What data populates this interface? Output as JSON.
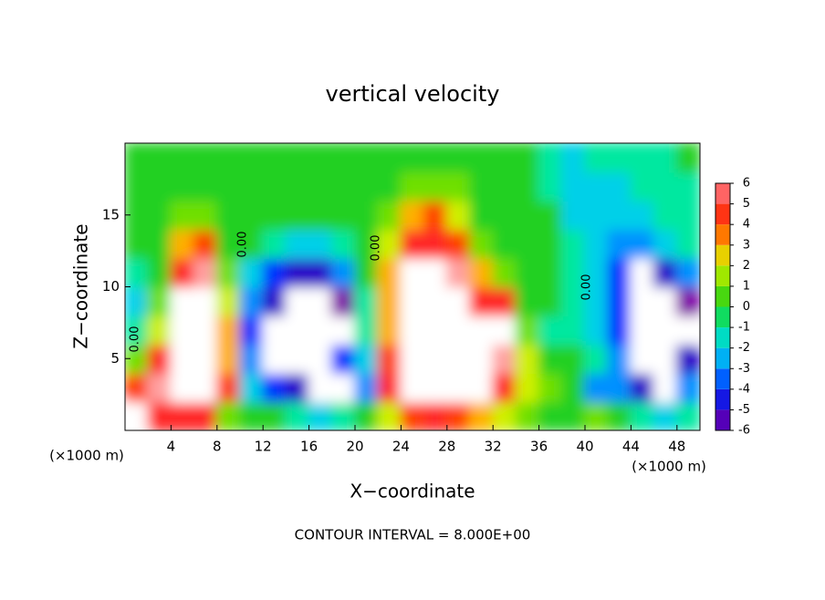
{
  "chart_data": {
    "type": "contourf",
    "title": "vertical velocity",
    "x_label": "X−coordinate",
    "y_label": "Z−coordinate",
    "x_unit_left": "(×1000 m)",
    "x_unit_right": "(×1000 m)",
    "footer": "CONTOUR INTERVAL = 8.000E+00",
    "contour_labels": [
      "0.00",
      "0.00",
      "0.00",
      "0.00"
    ],
    "xlim": [
      0,
      50
    ],
    "ylim": [
      0,
      20
    ],
    "xticks": [
      4,
      8,
      12,
      16,
      20,
      24,
      28,
      32,
      36,
      40,
      44,
      48
    ],
    "yticks": [
      5,
      10,
      15
    ],
    "x": [
      1,
      3,
      5,
      7,
      9,
      11,
      13,
      15,
      17,
      19,
      21,
      23,
      25,
      27,
      29,
      31,
      33,
      35,
      37,
      39,
      41,
      43,
      45,
      47,
      49
    ],
    "y": [
      1,
      3,
      5,
      7,
      9,
      11,
      13,
      15,
      17,
      19
    ],
    "values": [
      [
        8,
        5,
        5,
        5,
        1,
        0,
        0,
        -1,
        -2,
        -1,
        0,
        2,
        4,
        5,
        4,
        3,
        2,
        1,
        0,
        0,
        1,
        0,
        -1,
        -2,
        -1
      ],
      [
        4,
        6,
        8,
        8,
        4,
        -2,
        -4,
        -5,
        -8,
        -8,
        -3,
        5,
        8,
        8,
        8,
        8,
        5,
        2,
        1,
        0,
        -3,
        -3,
        -5,
        -8,
        -3
      ],
      [
        1,
        5,
        8,
        8,
        3,
        -3,
        -8,
        -8,
        -8,
        -4,
        -2,
        4,
        8,
        8,
        8,
        8,
        6,
        2,
        0,
        0,
        -1,
        -3,
        -8,
        -8,
        -5
      ],
      [
        -1,
        2,
        8,
        8,
        3,
        -4,
        -8,
        -8,
        -8,
        -8,
        -1,
        3,
        8,
        8,
        8,
        8,
        8,
        1,
        -1,
        -1,
        -2,
        -4,
        -8,
        -8,
        -8
      ],
      [
        -2,
        1,
        8,
        8,
        2,
        -3,
        -5,
        -8,
        -8,
        -6,
        -1,
        3,
        8,
        8,
        8,
        5,
        5,
        0,
        0,
        -1,
        -2,
        -4,
        -8,
        -8,
        -6
      ],
      [
        -1,
        0,
        5,
        6,
        1,
        -2,
        -4,
        -5,
        -5,
        -3,
        0,
        3,
        8,
        8,
        6,
        3,
        1,
        0,
        0,
        -1,
        -2,
        -4,
        -7,
        -5,
        -3
      ],
      [
        0,
        0,
        3,
        4,
        0,
        0,
        -1,
        -2,
        -2,
        -1,
        0,
        2,
        5,
        5,
        4,
        1,
        0,
        0,
        0,
        -1,
        -2,
        -3,
        -3,
        -2,
        -1
      ],
      [
        0,
        0,
        1,
        1,
        0,
        0,
        0,
        0,
        0,
        0,
        0,
        1,
        3,
        4,
        2,
        0,
        0,
        0,
        0,
        -2,
        -2,
        -2,
        -2,
        -1,
        -1
      ],
      [
        0,
        0,
        0,
        0,
        0,
        0,
        0,
        0,
        0,
        0,
        0,
        0,
        1,
        1,
        1,
        0,
        0,
        0,
        -1,
        -2,
        -2,
        -2,
        -1,
        -1,
        -1
      ],
      [
        0,
        0,
        0,
        0,
        0,
        0,
        0,
        0,
        0,
        0,
        0,
        0,
        0,
        0,
        0,
        0,
        0,
        0,
        -1,
        -2,
        -1,
        -1,
        -1,
        -1,
        0
      ]
    ],
    "colorbar": {
      "ticks": [
        -6,
        -5,
        -4,
        -3,
        -2,
        -1,
        0,
        1,
        2,
        3,
        4,
        5,
        6
      ],
      "colors": [
        "#8000a8",
        "#2a00c8",
        "#0030ff",
        "#0090ff",
        "#00d0e8",
        "#00e8a0",
        "#20d020",
        "#70e000",
        "#d0f000",
        "#ffb000",
        "#ff4000",
        "#ff2828",
        "#ffa0a0"
      ]
    }
  }
}
